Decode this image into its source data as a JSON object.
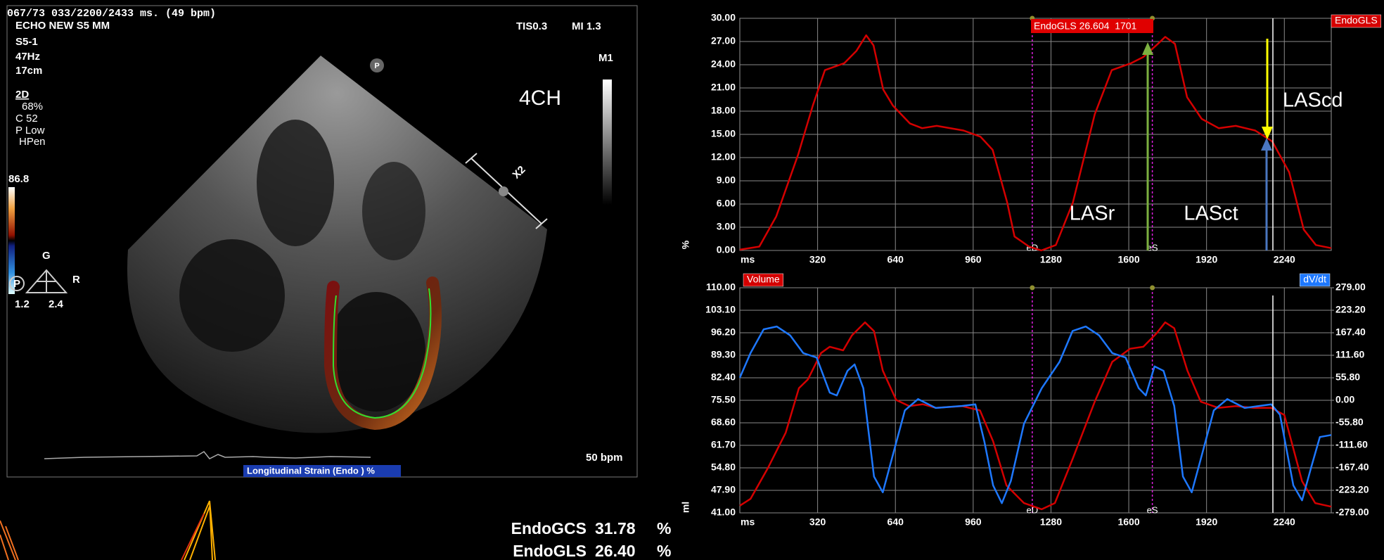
{
  "echo_panel": {
    "header": [
      "067/73 033/2200/2433 ms. (49 bpm)",
      "ECHO NEW S5 MM"
    ],
    "probe": [
      "S5-1",
      "47Hz",
      "17cm"
    ],
    "mode": "2D",
    "mode_settings": [
      "68%",
      "C 52",
      "P Low",
      "HPen"
    ],
    "tis": "TIS0.3",
    "mi": "MI 1.3",
    "map": "M1",
    "view": "4CH",
    "scale_max": "86.8",
    "gain": "G",
    "p": "P",
    "r": "R",
    "g_values": [
      "1.2",
      "2.4"
    ],
    "zoom": "X2",
    "probe_marker": "P",
    "heart_rate": "50 bpm",
    "overlay": "Longitudinal Strain (Endo ) %"
  },
  "measurements": [
    {
      "name": "EndoGCS",
      "value": "31.78",
      "unit": "%"
    },
    {
      "name": "EndoGLS",
      "value": "26.40",
      "unit": "%"
    }
  ],
  "chart_data": [
    {
      "type": "line",
      "xlabel": "ms",
      "ylabel": "%",
      "xlim": [
        0,
        2433
      ],
      "xticks": [
        320,
        640,
        960,
        1280,
        1600,
        1920,
        2240
      ],
      "ylim": [
        0,
        30
      ],
      "yticks": [
        {
          "value": 0,
          "label": "0.00"
        },
        {
          "value": 3,
          "label": "3.00"
        },
        {
          "value": 6,
          "label": "6.00"
        },
        {
          "value": 9,
          "label": "9.00"
        },
        {
          "value": 12,
          "label": "12.00"
        },
        {
          "value": 15,
          "label": "15.00"
        },
        {
          "value": 18,
          "label": "18.00"
        },
        {
          "value": 21,
          "label": "21.00"
        },
        {
          "value": 24,
          "label": "24.00"
        },
        {
          "value": 27,
          "label": "27.00"
        },
        {
          "value": 30,
          "label": "30.00"
        }
      ],
      "grid": true,
      "legend": "top-right",
      "series": [
        {
          "name": "EndoGLS",
          "color": "#d40000",
          "x": [
            0,
            80,
            150,
            240,
            300,
            350,
            430,
            480,
            520,
            550,
            590,
            630,
            700,
            750,
            810,
            920,
            990,
            1040,
            1100,
            1130,
            1190,
            1240,
            1300,
            1370,
            1460,
            1530,
            1610,
            1660,
            1720,
            1750,
            1790,
            1840,
            1900,
            1970,
            2040,
            2120,
            2190,
            2260,
            2320,
            2370,
            2433
          ],
          "values": [
            0.1,
            0.5,
            4.4,
            12.4,
            18.7,
            23.3,
            24.2,
            25.8,
            27.8,
            26.5,
            20.8,
            18.7,
            16.4,
            15.8,
            16.1,
            15.5,
            14.7,
            13.0,
            6.2,
            1.8,
            0.5,
            0.0,
            0.7,
            6.2,
            17.6,
            23.3,
            24.2,
            25.0,
            26.7,
            27.6,
            26.7,
            19.8,
            17.0,
            15.8,
            16.1,
            15.5,
            14.1,
            10.1,
            2.7,
            0.7,
            0.3
          ]
        }
      ],
      "events": [
        {
          "label": "eD",
          "x": 1203
        },
        {
          "label": "eS",
          "x": 1697
        }
      ],
      "annotations": [
        "EndoGLS 26.604  1701",
        "LASr",
        "LAScd",
        "LASct"
      ]
    },
    {
      "type": "line",
      "xlabel": "ms",
      "ylabel": "ml",
      "xlim": [
        0,
        2433
      ],
      "xticks": [
        320,
        640,
        960,
        1280,
        1600,
        1920,
        2240
      ],
      "ylim": [
        41,
        110
      ],
      "yticks": [
        {
          "value": 41,
          "label": "41.00"
        },
        {
          "value": 47.9,
          "label": "47.90"
        },
        {
          "value": 54.8,
          "label": "54.80"
        },
        {
          "value": 61.7,
          "label": "61.70"
        },
        {
          "value": 68.6,
          "label": "68.60"
        },
        {
          "value": 75.5,
          "label": "75.50"
        },
        {
          "value": 82.4,
          "label": "82.40"
        },
        {
          "value": 89.3,
          "label": "89.30"
        },
        {
          "value": 96.2,
          "label": "96.20"
        },
        {
          "value": 103.1,
          "label": "103.10"
        },
        {
          "value": 110,
          "label": "110.00"
        }
      ],
      "y2lim": [
        -279,
        279
      ],
      "y2ticks": [
        {
          "value": -279,
          "label": "-279.00"
        },
        {
          "value": -223.2,
          "label": "-223.20"
        },
        {
          "value": -167.4,
          "label": "-167.40"
        },
        {
          "value": -111.6,
          "label": "-111.60"
        },
        {
          "value": -55.8,
          "label": "-55.80"
        },
        {
          "value": 0,
          "label": "0.00"
        },
        {
          "value": 55.8,
          "label": "55.80"
        },
        {
          "value": 111.6,
          "label": "111.60"
        },
        {
          "value": 167.4,
          "label": "167.40"
        },
        {
          "value": 223.2,
          "label": "223.20"
        },
        {
          "value": 279,
          "label": "279.00"
        }
      ],
      "grid": true,
      "legend": "top",
      "series": [
        {
          "name": "Volume",
          "color": "#d40000",
          "x": [
            0,
            44,
            116,
            189,
            243,
            280,
            334,
            370,
            425,
            461,
            515,
            552,
            588,
            643,
            697,
            752,
            806,
            915,
            988,
            1042,
            1097,
            1169,
            1242,
            1296,
            1369,
            1460,
            1532,
            1605,
            1660,
            1714,
            1750,
            1787,
            1841,
            1896,
            1968,
            2041,
            2114,
            2186,
            2240,
            2313,
            2367,
            2433
          ],
          "values": [
            43.2,
            45.3,
            54.8,
            65.6,
            79.2,
            81.9,
            90.0,
            91.9,
            90.8,
            95.4,
            99.4,
            96.7,
            84.6,
            75.6,
            73.7,
            74.3,
            73.2,
            73.7,
            72.4,
            62.9,
            49.4,
            44.0,
            42.1,
            44.0,
            57.5,
            75.1,
            87.3,
            91.3,
            91.9,
            96.0,
            99.4,
            97.6,
            84.6,
            75.1,
            73.2,
            73.7,
            73.2,
            73.2,
            71.0,
            50.7,
            44.0,
            42.9
          ]
        },
        {
          "name": "dV/dt",
          "color": "#1e78ff",
          "axis": "y2",
          "x": [
            0,
            44,
            98,
            152,
            207,
            261,
            316,
            370,
            399,
            443,
            472,
            508,
            552,
            588,
            625,
            679,
            733,
            806,
            915,
            969,
            1006,
            1042,
            1078,
            1115,
            1169,
            1242,
            1315,
            1369,
            1423,
            1478,
            1532,
            1587,
            1641,
            1670,
            1706,
            1743,
            1787,
            1823,
            1859,
            1896,
            1950,
            2005,
            2077,
            2186,
            2222,
            2277,
            2313,
            2350,
            2386,
            2433
          ],
          "values": [
            56,
            117,
            176,
            183,
            161,
            117,
            106,
            19,
            12,
            73,
            89,
            30,
            -189,
            -228,
            -146,
            -25,
            3,
            -19,
            -14,
            -10,
            -102,
            -211,
            -255,
            -200,
            -58,
            30,
            95,
            172,
            183,
            161,
            117,
            106,
            30,
            12,
            84,
            73,
            -14,
            -189,
            -228,
            -146,
            -25,
            3,
            -19,
            -10,
            -36,
            -211,
            -248,
            -167,
            -91,
            -86
          ]
        }
      ],
      "events": [
        {
          "label": "eD",
          "x": 1203
        },
        {
          "label": "eS",
          "x": 1697
        }
      ]
    }
  ]
}
